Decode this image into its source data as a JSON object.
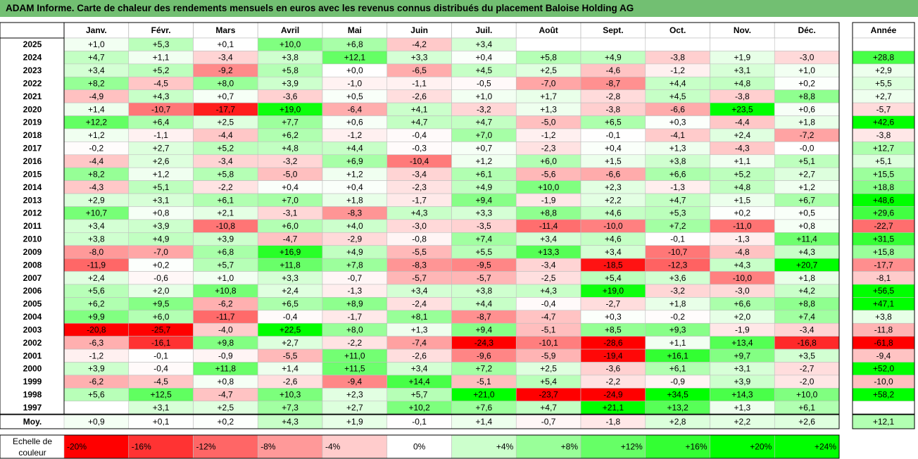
{
  "title": "ADAM Informe. Carte de chaleur des rendements mensuels en euros avec les revenus connus distribués du placement Baloise Holding AG",
  "colors": {
    "title_bg": "#72bf72",
    "negative_max": "#ff0000",
    "positive_max": "#00ff00",
    "neutral": "#ffffff",
    "grid": "#bfbfbf",
    "border": "#000000"
  },
  "chart_data": {
    "type": "heatmap",
    "months": [
      "Janv.",
      "Févr.",
      "Mars",
      "Avril",
      "Mai",
      "Juin",
      "Juil.",
      "Août",
      "Sept.",
      "Oct.",
      "Nov.",
      "Déc."
    ],
    "year_header": "Année",
    "rows": [
      {
        "year": "2025",
        "values": [
          1.0,
          5.3,
          0.1,
          10.0,
          6.8,
          -4.2,
          3.4,
          null,
          null,
          null,
          null,
          null
        ],
        "year_total": null
      },
      {
        "year": "2024",
        "values": [
          4.7,
          1.1,
          -3.4,
          3.8,
          12.1,
          3.3,
          0.4,
          5.8,
          4.9,
          -3.8,
          1.9,
          -3.0
        ],
        "year_total": 28.8
      },
      {
        "year": "2023",
        "values": [
          3.4,
          5.2,
          -9.2,
          5.8,
          0.0,
          -6.5,
          4.5,
          2.5,
          -4.6,
          -1.2,
          3.1,
          1.0
        ],
        "year_total": 2.9
      },
      {
        "year": "2022",
        "values": [
          8.2,
          -4.5,
          8.0,
          3.9,
          -1.0,
          -1.1,
          -0.5,
          -7.0,
          -8.7,
          4.4,
          4.8,
          0.2
        ],
        "year_total": 5.5
      },
      {
        "year": "2021",
        "values": [
          -4.9,
          4.3,
          0.7,
          -3.6,
          0.5,
          -2.6,
          1.0,
          1.7,
          -2.8,
          4.5,
          -3.8,
          8.8
        ],
        "year_total": 2.7
      },
      {
        "year": "2020",
        "values": [
          1.4,
          -10.7,
          -17.7,
          19.0,
          -6.4,
          4.1,
          -3.2,
          1.3,
          -3.8,
          -6.6,
          23.5,
          0.6
        ],
        "year_total": -5.7
      },
      {
        "year": "2019",
        "values": [
          12.2,
          6.4,
          2.5,
          7.7,
          0.6,
          4.7,
          4.7,
          -5.0,
          6.5,
          0.3,
          -4.4,
          1.8
        ],
        "year_total": 42.6
      },
      {
        "year": "2018",
        "values": [
          1.2,
          -1.1,
          -4.4,
          6.2,
          -1.2,
          -0.4,
          7.0,
          -1.2,
          -0.1,
          -4.1,
          2.4,
          -7.2
        ],
        "year_total": -3.8
      },
      {
        "year": "2017",
        "values": [
          -0.2,
          2.7,
          5.2,
          4.8,
          4.4,
          -0.3,
          0.7,
          -2.3,
          0.4,
          1.3,
          -4.3,
          -0.0
        ],
        "year_total": 12.7
      },
      {
        "year": "2016",
        "values": [
          -4.4,
          2.6,
          -3.4,
          -3.2,
          6.9,
          -10.4,
          1.2,
          6.0,
          1.5,
          3.8,
          1.1,
          5.1
        ],
        "year_total": 5.1
      },
      {
        "year": "2015",
        "values": [
          8.2,
          1.2,
          5.8,
          -5.0,
          1.2,
          -3.4,
          6.1,
          -5.6,
          -6.6,
          6.6,
          5.2,
          2.7
        ],
        "year_total": 15.5
      },
      {
        "year": "2014",
        "values": [
          -4.3,
          5.1,
          -2.2,
          0.4,
          0.4,
          -2.3,
          4.9,
          10.0,
          2.3,
          -1.3,
          4.8,
          1.2
        ],
        "year_total": 18.8
      },
      {
        "year": "2013",
        "values": [
          2.9,
          3.1,
          6.1,
          7.0,
          1.8,
          -1.7,
          9.4,
          -1.9,
          2.2,
          4.7,
          1.5,
          6.7
        ],
        "year_total": 48.6
      },
      {
        "year": "2012",
        "values": [
          10.7,
          0.8,
          2.1,
          -3.1,
          -8.3,
          4.3,
          3.3,
          8.8,
          4.6,
          5.3,
          0.2,
          0.5
        ],
        "year_total": 29.6
      },
      {
        "year": "2011",
        "values": [
          3.4,
          3.9,
          -10.8,
          6.0,
          4.0,
          -3.0,
          -3.5,
          -11.4,
          -10.0,
          7.2,
          -11.0,
          0.8
        ],
        "year_total": -22.7
      },
      {
        "year": "2010",
        "values": [
          3.8,
          4.9,
          3.9,
          -4.7,
          -2.9,
          -0.8,
          7.4,
          3.4,
          4.6,
          -0.1,
          -1.3,
          11.4
        ],
        "year_total": 31.5
      },
      {
        "year": "2009",
        "values": [
          -8.0,
          -7.0,
          6.8,
          16.9,
          4.9,
          -5.5,
          5.5,
          13.3,
          3.4,
          -10.7,
          -4.8,
          4.3
        ],
        "year_total": 15.8
      },
      {
        "year": "2008",
        "values": [
          -11.9,
          0.2,
          5.7,
          11.8,
          7.8,
          -8.3,
          -9.5,
          -3.4,
          -18.5,
          -12.3,
          4.3,
          20.7
        ],
        "year_total": -17.7
      },
      {
        "year": "2007",
        "values": [
          2.4,
          -0.6,
          1.0,
          3.3,
          -0.7,
          -5.7,
          -5.7,
          -2.5,
          5.4,
          3.6,
          -10.0,
          1.8
        ],
        "year_total": -8.1
      },
      {
        "year": "2006",
        "values": [
          5.6,
          2.0,
          10.8,
          2.4,
          -1.3,
          3.4,
          3.8,
          4.3,
          19.0,
          -3.2,
          -3.0,
          4.2
        ],
        "year_total": 56.5
      },
      {
        "year": "2005",
        "values": [
          6.2,
          9.5,
          -6.2,
          6.5,
          8.9,
          -2.4,
          4.4,
          -0.4,
          -2.7,
          1.8,
          6.6,
          8.8
        ],
        "year_total": 47.1
      },
      {
        "year": "2004",
        "values": [
          9.9,
          6.0,
          -11.7,
          -0.4,
          -1.7,
          8.1,
          -8.7,
          -4.7,
          0.3,
          -0.2,
          2.0,
          7.4
        ],
        "year_total": 3.8
      },
      {
        "year": "2003",
        "values": [
          -20.8,
          -25.7,
          -4.0,
          22.5,
          8.0,
          1.3,
          9.4,
          -5.1,
          8.5,
          9.3,
          -1.9,
          -3.4
        ],
        "year_total": -11.8
      },
      {
        "year": "2002",
        "values": [
          -6.3,
          -16.1,
          9.8,
          2.7,
          -2.2,
          -7.4,
          -24.3,
          -10.1,
          -28.6,
          1.1,
          13.4,
          -16.8
        ],
        "year_total": -61.8
      },
      {
        "year": "2001",
        "values": [
          -1.2,
          -0.1,
          -0.9,
          -5.5,
          11.0,
          -2.6,
          -9.6,
          -5.9,
          -19.4,
          16.1,
          9.7,
          3.5
        ],
        "year_total": -9.4
      },
      {
        "year": "2000",
        "values": [
          3.9,
          -0.4,
          11.8,
          1.4,
          11.5,
          3.4,
          7.2,
          2.5,
          -3.6,
          6.1,
          3.1,
          -2.7
        ],
        "year_total": 52.0
      },
      {
        "year": "1999",
        "values": [
          -6.2,
          -4.5,
          0.8,
          -2.6,
          -9.4,
          14.4,
          -5.1,
          5.4,
          -2.2,
          -0.9,
          3.9,
          -2.0
        ],
        "year_total": -10.0
      },
      {
        "year": "1998",
        "values": [
          5.6,
          12.5,
          -4.7,
          10.3,
          2.3,
          5.7,
          21.0,
          -23.7,
          -24.9,
          34.5,
          14.3,
          10.0
        ],
        "year_total": 58.2
      },
      {
        "year": "1997",
        "values": [
          null,
          3.1,
          2.5,
          7.3,
          2.7,
          10.2,
          7.6,
          4.7,
          21.1,
          13.2,
          1.3,
          6.1
        ],
        "year_total": null
      }
    ],
    "average": {
      "label": "Moy.",
      "values": [
        0.9,
        0.1,
        0.2,
        4.3,
        1.9,
        -0.1,
        1.4,
        -0.7,
        -1.8,
        2.8,
        2.2,
        2.6
      ],
      "year_total": 12.1
    },
    "scale": {
      "label_line1": "Echelle de",
      "label_line2": "couleur",
      "stops": [
        "-20%",
        "-16%",
        "-12%",
        "-8%",
        "-4%",
        "0%",
        "+4%",
        "+8%",
        "+12%",
        "+16%",
        "+20%",
        "+24%"
      ],
      "stop_values": [
        -20,
        -16,
        -12,
        -8,
        -4,
        0,
        4,
        8,
        12,
        16,
        20,
        24
      ]
    }
  }
}
